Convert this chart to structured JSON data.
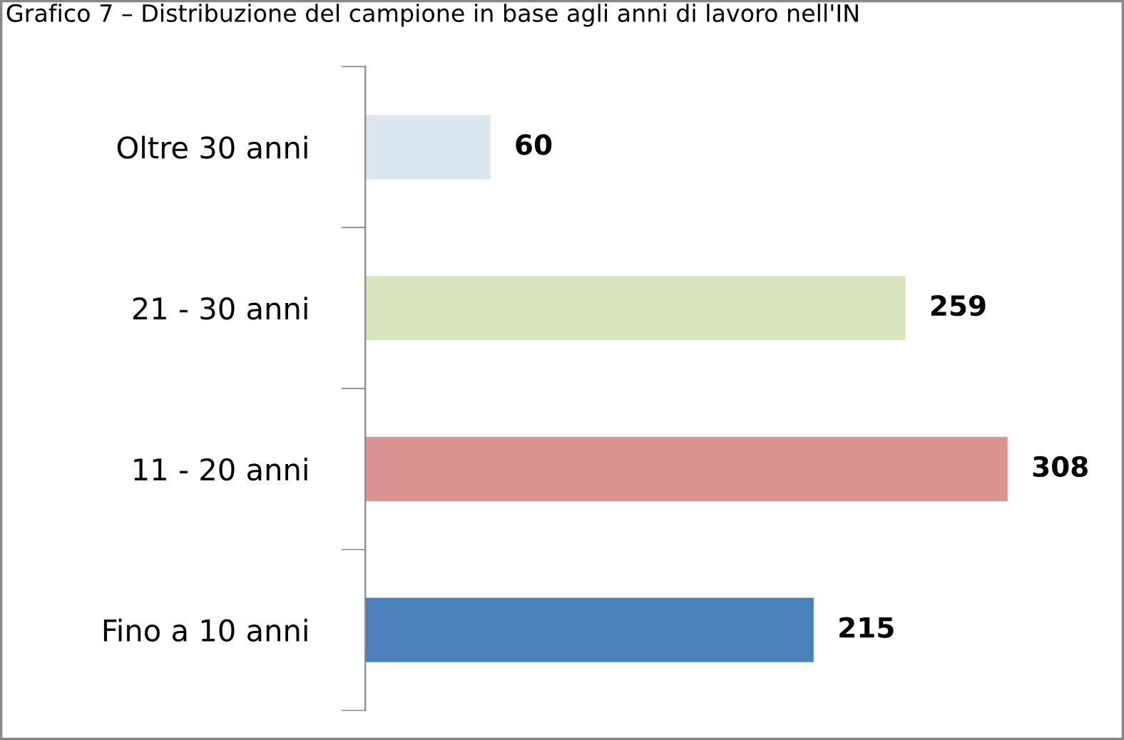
{
  "chart_data": {
    "type": "bar",
    "orientation": "horizontal",
    "title": "Grafico 7 – Distribuzione del campione in base agli anni di lavoro nell'IN",
    "categories": [
      "Oltre 30 anni",
      "21 - 30 anni",
      "11 - 20 anni",
      "Fino a 10 anni"
    ],
    "values": [
      60,
      259,
      308,
      215
    ],
    "colors": [
      "#dbe6f1",
      "#d7e4bd",
      "#dc9493",
      "#4a81bd"
    ],
    "data_labels": true,
    "grid": false,
    "legend": false
  }
}
